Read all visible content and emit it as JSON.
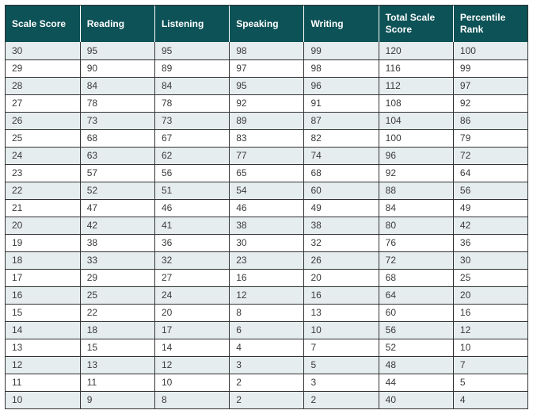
{
  "table": {
    "columns": [
      "Scale Score",
      "Reading",
      "Listening",
      "Speaking",
      "Writing",
      "Total Scale Score",
      "Percentile Rank"
    ],
    "col_widths": [
      "14.3%",
      "14.3%",
      "14.3%",
      "14.3%",
      "14.3%",
      "14.3%",
      "14.2%"
    ],
    "header_bg": "#0d5257",
    "header_fg": "#ffffff",
    "row_alt_bg": "#e6edef",
    "row_bg": "#ffffff",
    "border_color": "#333333",
    "font_size": 12,
    "rows": [
      [
        "30",
        "95",
        "95",
        "98",
        "99",
        "120",
        "100"
      ],
      [
        "29",
        "90",
        "89",
        "97",
        "98",
        "116",
        "99"
      ],
      [
        "28",
        "84",
        "84",
        "95",
        "96",
        "112",
        "97"
      ],
      [
        "27",
        "78",
        "78",
        "92",
        "91",
        "108",
        "92"
      ],
      [
        "26",
        "73",
        "73",
        "89",
        "87",
        "104",
        "86"
      ],
      [
        "25",
        "68",
        "67",
        "83",
        "82",
        "100",
        "79"
      ],
      [
        "24",
        "63",
        "62",
        "77",
        "74",
        "96",
        "72"
      ],
      [
        "23",
        "57",
        "56",
        "65",
        "68",
        "92",
        "64"
      ],
      [
        "22",
        "52",
        "51",
        "54",
        "60",
        "88",
        "56"
      ],
      [
        "21",
        "47",
        "46",
        "46",
        "49",
        "84",
        "49"
      ],
      [
        "20",
        "42",
        "41",
        "38",
        "38",
        "80",
        "42"
      ],
      [
        "19",
        "38",
        "36",
        "30",
        "32",
        "76",
        "36"
      ],
      [
        "18",
        "33",
        "32",
        "23",
        "26",
        "72",
        "30"
      ],
      [
        "17",
        "29",
        "27",
        "16",
        "20",
        "68",
        "25"
      ],
      [
        "16",
        "25",
        "24",
        "12",
        "16",
        "64",
        "20"
      ],
      [
        "15",
        "22",
        "20",
        "8",
        "13",
        "60",
        "16"
      ],
      [
        "14",
        "18",
        "17",
        "6",
        "10",
        "56",
        "12"
      ],
      [
        "13",
        "15",
        "14",
        "4",
        "7",
        "52",
        "10"
      ],
      [
        "12",
        "13",
        "12",
        "3",
        "5",
        "48",
        "7"
      ],
      [
        "11",
        "11",
        "10",
        "2",
        "3",
        "44",
        "5"
      ],
      [
        "10",
        "9",
        "8",
        "2",
        "2",
        "40",
        "4"
      ]
    ]
  }
}
